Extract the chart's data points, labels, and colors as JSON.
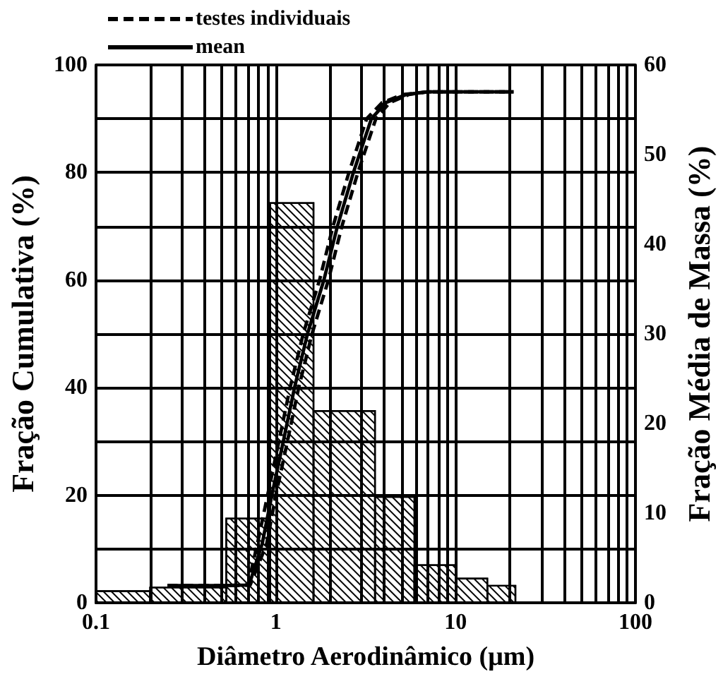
{
  "chart_data": {
    "type": "line",
    "xlabel": "Diâmetro Aerodinâmico (μm)",
    "ylabel": "Fração Cumulativa (%)",
    "y2label": "Fração Média de Massa (%)",
    "log": "x",
    "xlim": [
      0.1,
      100
    ],
    "xticks": [
      0.1,
      {
        "value": 0.2,
        "label": null
      },
      {
        "value": 0.3,
        "label": null
      },
      {
        "value": 0.4,
        "label": null
      },
      {
        "value": 0.5,
        "label": null
      },
      {
        "value": 0.6,
        "label": null
      },
      {
        "value": 0.7,
        "label": null
      },
      {
        "value": 0.8,
        "label": null
      },
      {
        "value": 0.9,
        "label": null
      },
      1,
      {
        "value": 2,
        "label": null
      },
      {
        "value": 3,
        "label": null
      },
      {
        "value": 4,
        "label": null
      },
      {
        "value": 5,
        "label": null
      },
      {
        "value": 6,
        "label": null
      },
      {
        "value": 7,
        "label": null
      },
      {
        "value": 8,
        "label": null
      },
      {
        "value": 9,
        "label": null
      },
      10,
      {
        "value": 20,
        "label": null
      },
      {
        "value": 30,
        "label": null
      },
      {
        "value": 40,
        "label": null
      },
      {
        "value": 50,
        "label": null
      },
      {
        "value": 60,
        "label": null
      },
      {
        "value": 70,
        "label": null
      },
      {
        "value": 80,
        "label": null
      },
      {
        "value": 90,
        "label": null
      },
      100
    ],
    "ylim": [
      0,
      100
    ],
    "yticks": [
      0,
      {
        "value": 10,
        "label": null
      },
      20,
      {
        "value": 30,
        "label": null
      },
      40,
      {
        "value": 50,
        "label": null
      },
      60,
      {
        "value": 70,
        "label": null
      },
      80,
      {
        "value": 90,
        "label": null
      },
      100
    ],
    "y2lim": [
      0,
      60
    ],
    "y2ticks": [
      0,
      10,
      20,
      30,
      40,
      50,
      60
    ],
    "grid": true,
    "legend": "top left",
    "series": [
      {
        "type": "histogram",
        "axis": "y2",
        "color": "#000000",
        "bins": [
          0.1,
          0.2,
          0.53,
          0.93,
          1.62,
          3.56,
          5.9,
          10,
          15,
          21.5
        ],
        "values": [
          1.3,
          1.7,
          9.4,
          44.6,
          21.4,
          11.8,
          4.2,
          2.7,
          1.9
        ]
      },
      {
        "name": "testes individuais",
        "line_style": "dashed",
        "color": "#000000",
        "x": [
          0.25,
          0.5,
          0.7,
          0.79,
          0.9,
          1.04,
          1.2,
          1.42,
          1.75,
          2.08,
          2.55,
          3.2,
          3.9,
          5.1,
          7,
          21
        ],
        "values": [
          3.2,
          3.2,
          3.3,
          11,
          20,
          30,
          40,
          50,
          60,
          70,
          80,
          90,
          93,
          94.5,
          95,
          95
        ]
      },
      {
        "line_style": "dashed",
        "color": "#000000",
        "x": [
          0.25,
          0.5,
          0.72,
          0.89,
          1.0,
          1.16,
          1.34,
          1.59,
          1.96,
          2.33,
          2.86,
          3.6,
          4.3,
          5.5,
          7,
          21
        ],
        "values": [
          3.2,
          3.2,
          3.3,
          11,
          20,
          30,
          40,
          50,
          60,
          70,
          80,
          90,
          93,
          94.5,
          95,
          95
        ]
      },
      {
        "name": "mean",
        "line_style": "solid",
        "color": "#000000",
        "x": [
          0.25,
          0.5,
          0.71,
          0.84,
          0.95,
          1.1,
          1.27,
          1.5,
          1.85,
          2.2,
          2.7,
          3.4,
          4.1,
          5.3,
          7,
          21
        ],
        "values": [
          3.2,
          3.2,
          3.3,
          11,
          20,
          30,
          40,
          50,
          60,
          70,
          80,
          90,
          93,
          94.5,
          95,
          95
        ]
      }
    ]
  }
}
